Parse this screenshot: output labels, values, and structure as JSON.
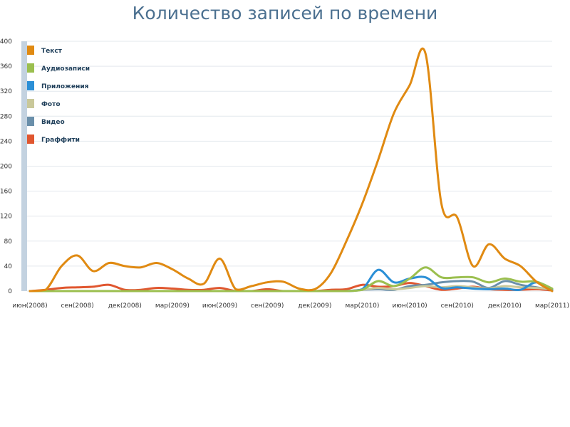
{
  "chart_data": {
    "type": "line",
    "title": "Количество записей по времени",
    "xlabel": "",
    "ylabel": "",
    "ylim": [
      0,
      400
    ],
    "yticks": [
      0,
      40,
      80,
      120,
      160,
      200,
      240,
      280,
      320,
      360,
      400
    ],
    "x_tick_labels": [
      "июн(2008)",
      "сен(2008)",
      "дек(2008)",
      "мар(2009)",
      "июн(2009)",
      "сен(2009)",
      "дек(2009)",
      "мар(2010)",
      "июн(2010)",
      "сен(2010)",
      "дек(2010)",
      "мар(2011)"
    ],
    "grid": "horizontal",
    "legend_position": "top-left",
    "x_months": [
      "2008-06",
      "2008-07",
      "2008-08",
      "2008-09",
      "2008-10",
      "2008-11",
      "2008-12",
      "2009-01",
      "2009-02",
      "2009-03",
      "2009-04",
      "2009-05",
      "2009-06",
      "2009-07",
      "2009-08",
      "2009-09",
      "2009-10",
      "2009-11",
      "2009-12",
      "2010-01",
      "2010-02",
      "2010-03",
      "2010-04",
      "2010-05",
      "2010-06",
      "2010-07",
      "2010-08",
      "2010-09",
      "2010-10",
      "2010-11",
      "2010-12",
      "2011-01",
      "2011-02",
      "2011-03"
    ],
    "series": [
      {
        "name": "Текст",
        "color": "#e08a12",
        "values": [
          0,
          2,
          40,
          57,
          32,
          45,
          40,
          38,
          45,
          35,
          20,
          12,
          52,
          3,
          8,
          14,
          15,
          4,
          3,
          28,
          80,
          140,
          210,
          285,
          330,
          380,
          140,
          118,
          40,
          75,
          52,
          40,
          15,
          0
        ]
      },
      {
        "name": "Аудиозаписи",
        "color": "#9bbf4f",
        "values": [
          0,
          0,
          0,
          0,
          0,
          0,
          0,
          0,
          0,
          0,
          0,
          0,
          0,
          0,
          0,
          0,
          0,
          0,
          0,
          0,
          0,
          2,
          16,
          8,
          20,
          38,
          22,
          22,
          22,
          14,
          20,
          15,
          15,
          4
        ]
      },
      {
        "name": "Приложения",
        "color": "#2b8fd6",
        "values": [
          0,
          0,
          0,
          0,
          0,
          0,
          0,
          0,
          0,
          0,
          0,
          0,
          0,
          0,
          0,
          0,
          0,
          0,
          0,
          0,
          0,
          3,
          34,
          14,
          20,
          22,
          5,
          6,
          4,
          3,
          4,
          2,
          14,
          2
        ]
      },
      {
        "name": "Фото",
        "color": "#c9c89a",
        "values": [
          0,
          0,
          0,
          0,
          0,
          0,
          0,
          0,
          0,
          0,
          0,
          0,
          0,
          0,
          0,
          0,
          0,
          0,
          0,
          0,
          0,
          2,
          5,
          3,
          5,
          8,
          6,
          8,
          6,
          4,
          8,
          6,
          5,
          3
        ]
      },
      {
        "name": "Видео",
        "color": "#6a8faa",
        "values": [
          0,
          0,
          0,
          0,
          0,
          0,
          0,
          0,
          0,
          0,
          0,
          0,
          0,
          0,
          0,
          0,
          0,
          0,
          0,
          0,
          0,
          2,
          3,
          2,
          8,
          10,
          14,
          16,
          15,
          5,
          16,
          10,
          6,
          2
        ]
      },
      {
        "name": "Граффити",
        "color": "#e0562f",
        "values": [
          0,
          2,
          5,
          6,
          7,
          10,
          2,
          2,
          5,
          4,
          2,
          2,
          5,
          0,
          0,
          3,
          0,
          0,
          0,
          2,
          3,
          10,
          7,
          8,
          13,
          8,
          2,
          4,
          7,
          3,
          2,
          2,
          3,
          1
        ]
      }
    ]
  }
}
